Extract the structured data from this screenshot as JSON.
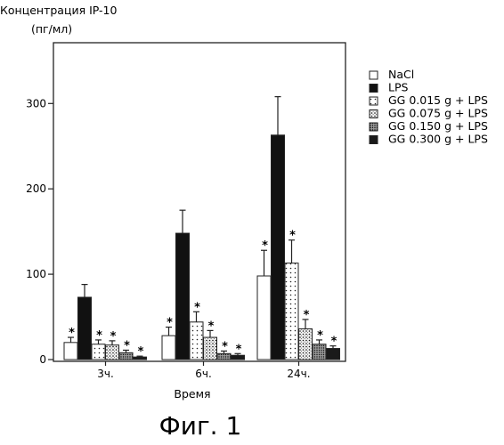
{
  "chart_data": {
    "type": "bar",
    "ylabel_lines": [
      "Концентрация IP-10",
      "(пг/мл)"
    ],
    "xlabel": "Время",
    "categories": [
      "3ч.",
      "6ч.",
      "24ч."
    ],
    "ylim": [
      0,
      350
    ],
    "yticks": [
      0,
      100,
      200,
      300
    ],
    "series": [
      {
        "name": "NaCl",
        "color": "#ffffff",
        "pattern": "open",
        "values": [
          20,
          28,
          98
        ],
        "errors": [
          6,
          10,
          30
        ],
        "significant": [
          true,
          true,
          true
        ]
      },
      {
        "name": "LPS",
        "color": "#111111",
        "pattern": "solid",
        "values": [
          73,
          148,
          263
        ],
        "errors": [
          15,
          27,
          45
        ],
        "significant": [
          false,
          false,
          false
        ]
      },
      {
        "name": "GG 0.015 g + LPS",
        "color": "#ffffff",
        "pattern": "dots-sparse",
        "values": [
          18,
          44,
          113
        ],
        "errors": [
          5,
          12,
          27
        ],
        "significant": [
          true,
          true,
          true
        ]
      },
      {
        "name": "GG 0.075 g + LPS",
        "color": "#ffffff",
        "pattern": "dots-medium",
        "values": [
          17,
          26,
          36
        ],
        "errors": [
          5,
          8,
          11
        ],
        "significant": [
          true,
          true,
          true
        ]
      },
      {
        "name": "GG 0.150 g + LPS",
        "color": "#888888",
        "pattern": "dots-dense",
        "values": [
          8,
          7,
          18
        ],
        "errors": [
          3,
          3,
          5
        ],
        "significant": [
          true,
          true,
          true
        ]
      },
      {
        "name": "GG 0.300 g + LPS",
        "color": "#1a1a1a",
        "pattern": "solid-dark",
        "values": [
          3,
          5,
          13
        ],
        "errors": [
          1,
          2,
          3
        ],
        "significant": [
          true,
          true,
          true
        ]
      }
    ],
    "significance_marker": "*",
    "grid": false,
    "legend_position": "right"
  },
  "caption": "Фиг. 1"
}
